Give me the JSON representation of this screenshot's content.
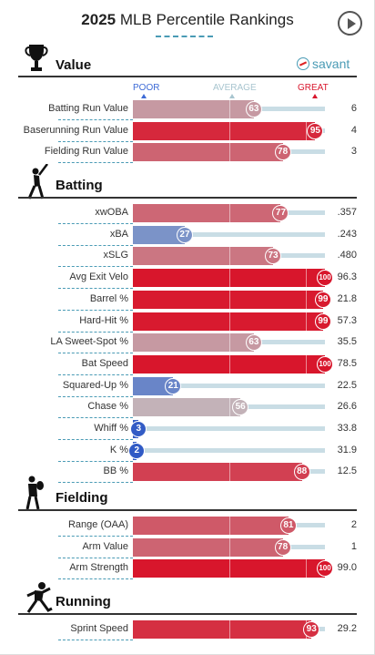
{
  "header": {
    "year": "2025",
    "title": "MLB Percentile Rankings"
  },
  "brand": {
    "name": "savant"
  },
  "scale": {
    "poor": "POOR",
    "average": "AVERAGE",
    "great": "GREAT"
  },
  "colors": {
    "poor": "#3e6bd6",
    "average": "#a8c5cf",
    "great": "#d8162c",
    "accent": "#4a9bb5"
  },
  "sections": [
    {
      "title": "Value",
      "icon": "trophy-icon",
      "rows": [
        {
          "label": "Batting Run Value",
          "pct": 63,
          "value": "6"
        },
        {
          "label": "Baserunning Run Value",
          "pct": 95,
          "value": "4"
        },
        {
          "label": "Fielding Run Value",
          "pct": 78,
          "value": "3"
        }
      ]
    },
    {
      "title": "Batting",
      "icon": "batter-icon",
      "rows": [
        {
          "label": "xwOBA",
          "pct": 77,
          "value": ".357"
        },
        {
          "label": "xBA",
          "pct": 27,
          "value": ".243"
        },
        {
          "label": "xSLG",
          "pct": 73,
          "value": ".480"
        },
        {
          "label": "Avg Exit Velo",
          "pct": 100,
          "value": "96.3"
        },
        {
          "label": "Barrel %",
          "pct": 99,
          "value": "21.8"
        },
        {
          "label": "Hard-Hit %",
          "pct": 99,
          "value": "57.3"
        },
        {
          "label": "LA Sweet-Spot %",
          "pct": 63,
          "value": "35.5"
        },
        {
          "label": "Bat Speed",
          "pct": 100,
          "value": "78.5"
        },
        {
          "label": "Squared-Up %",
          "pct": 21,
          "value": "22.5"
        },
        {
          "label": "Chase %",
          "pct": 56,
          "value": "26.6"
        },
        {
          "label": "Whiff %",
          "pct": 3,
          "value": "33.8"
        },
        {
          "label": "K %",
          "pct": 2,
          "value": "31.9"
        },
        {
          "label": "BB %",
          "pct": 88,
          "value": "12.5"
        }
      ]
    },
    {
      "title": "Fielding",
      "icon": "fielder-icon",
      "rows": [
        {
          "label": "Range (OAA)",
          "pct": 81,
          "value": "2"
        },
        {
          "label": "Arm Value",
          "pct": 78,
          "value": "1"
        },
        {
          "label": "Arm Strength",
          "pct": 100,
          "value": "99.0"
        }
      ]
    },
    {
      "title": "Running",
      "icon": "runner-icon",
      "rows": [
        {
          "label": "Sprint Speed",
          "pct": 93,
          "value": "29.2"
        }
      ]
    }
  ]
}
